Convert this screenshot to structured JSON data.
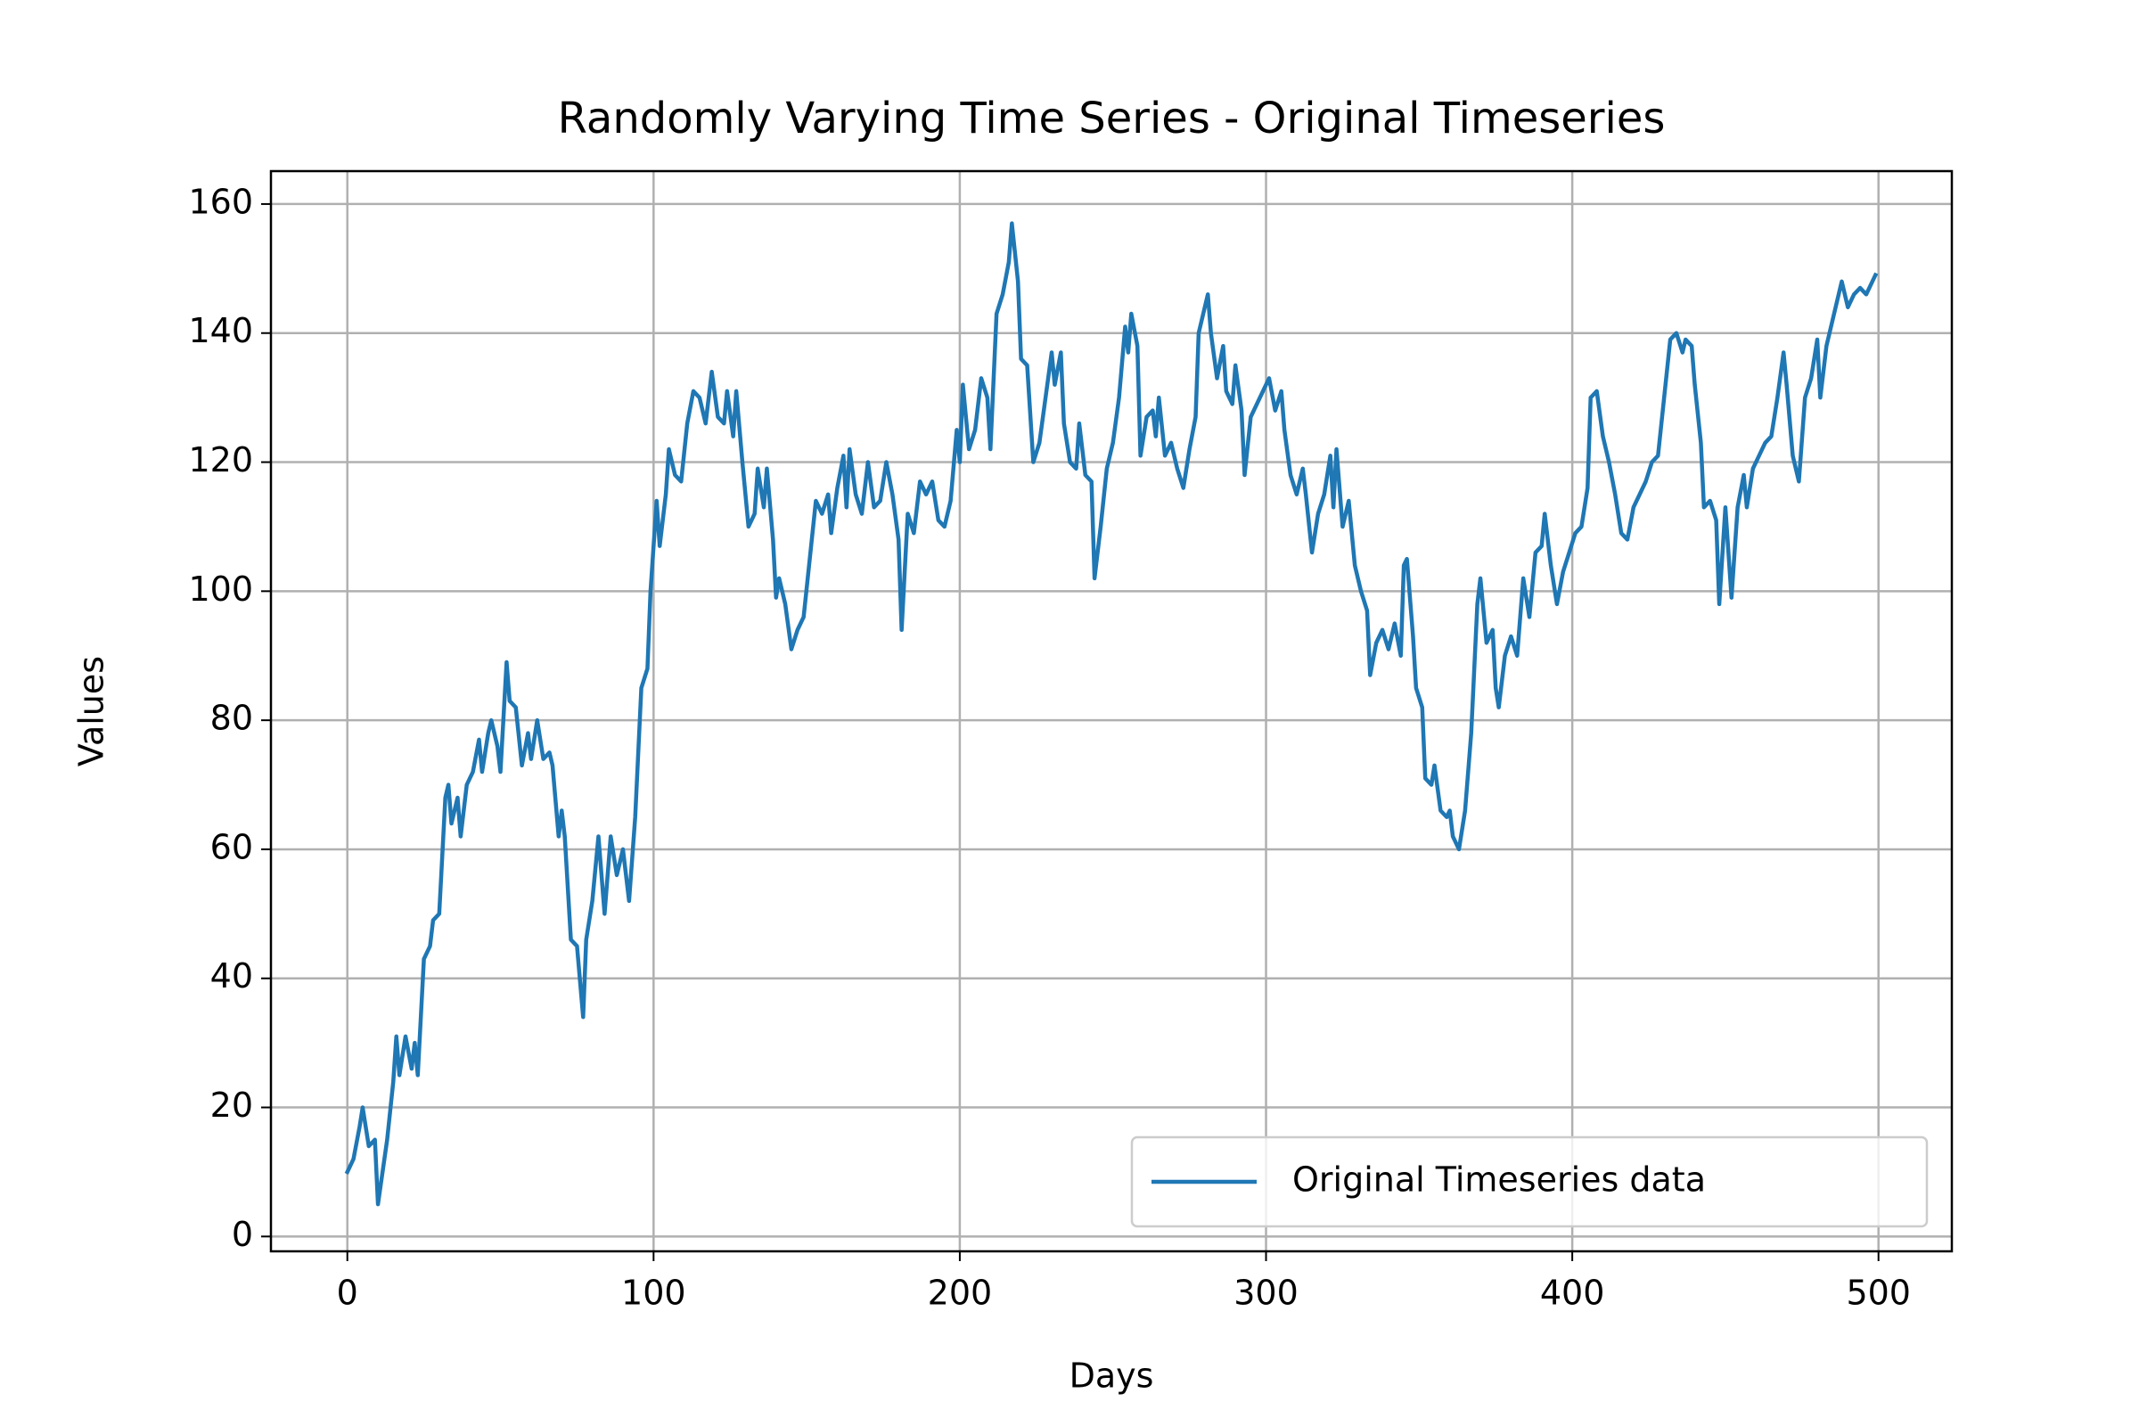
{
  "chart_data": {
    "type": "line",
    "title": "Randomly Varying Time Series - Original Timeseries",
    "x_label": "Days",
    "y_label": "Values",
    "x": [
      0,
      2,
      4,
      5,
      7,
      9,
      10,
      13,
      15,
      16,
      17,
      19,
      21,
      22,
      23,
      25,
      27,
      28,
      30,
      32,
      33,
      34,
      36,
      37,
      39,
      41,
      43,
      44,
      46,
      47,
      49,
      50,
      52,
      53,
      55,
      57,
      59,
      60,
      62,
      64,
      66,
      67,
      69,
      70,
      71,
      73,
      75,
      77,
      78,
      80,
      82,
      84,
      86,
      88,
      90,
      92,
      94,
      96,
      98,
      99,
      101,
      102,
      104,
      105,
      107,
      109,
      111,
      113,
      115,
      117,
      119,
      121,
      123,
      124,
      126,
      127,
      129,
      131,
      133,
      134,
      136,
      137,
      139,
      140,
      141,
      143,
      145,
      147,
      149,
      151,
      153,
      155,
      157,
      158,
      160,
      162,
      163,
      164,
      166,
      168,
      170,
      172,
      174,
      176,
      178,
      180,
      181,
      183,
      185,
      187,
      189,
      191,
      193,
      195,
      197,
      199,
      200,
      201,
      203,
      205,
      207,
      209,
      210,
      212,
      214,
      216,
      217,
      219,
      220,
      222,
      224,
      226,
      228,
      230,
      231,
      233,
      234,
      236,
      238,
      239,
      241,
      243,
      244,
      246,
      248,
      250,
      252,
      254,
      255,
      256,
      258,
      259,
      261,
      263,
      264,
      265,
      267,
      269,
      271,
      273,
      275,
      277,
      278,
      280,
      281,
      282,
      284,
      286,
      287,
      289,
      290,
      292,
      293,
      295,
      297,
      299,
      301,
      303,
      305,
      306,
      308,
      310,
      312,
      313,
      315,
      317,
      319,
      321,
      322,
      323,
      325,
      327,
      329,
      331,
      333,
      334,
      336,
      338,
      340,
      342,
      344,
      345,
      346,
      348,
      349,
      351,
      352,
      354,
      355,
      357,
      359,
      360,
      361,
      363,
      364,
      365,
      367,
      369,
      370,
      372,
      374,
      375,
      376,
      378,
      380,
      382,
      384,
      386,
      388,
      390,
      391,
      393,
      395,
      397,
      399,
      401,
      403,
      405,
      406,
      408,
      410,
      412,
      414,
      416,
      418,
      420,
      422,
      424,
      426,
      428,
      430,
      432,
      434,
      436,
      437,
      439,
      440,
      442,
      443,
      445,
      447,
      448,
      450,
      452,
      454,
      456,
      457,
      459,
      461,
      463,
      465,
      467,
      469,
      470,
      472,
      474,
      476,
      478,
      480,
      481,
      483,
      485,
      487,
      488,
      490,
      492,
      494,
      496,
      499
    ],
    "series": [
      {
        "name": "Original Timeseries data",
        "color": "#1f77b4",
        "values": [
          10,
          12,
          17,
          20,
          14,
          15,
          5,
          15,
          24,
          31,
          25,
          31,
          26,
          30,
          25,
          43,
          45,
          49,
          50,
          68,
          70,
          64,
          68,
          62,
          70,
          72,
          77,
          72,
          78,
          80,
          76,
          72,
          89,
          83,
          82,
          73,
          78,
          74,
          80,
          74,
          75,
          73,
          62,
          66,
          62,
          46,
          45,
          34,
          46,
          52,
          62,
          50,
          62,
          56,
          60,
          52,
          65,
          85,
          88,
          100,
          114,
          107,
          115,
          122,
          118,
          117,
          126,
          131,
          130,
          126,
          134,
          127,
          126,
          131,
          124,
          131,
          120,
          110,
          112,
          119,
          113,
          119,
          108,
          99,
          102,
          98,
          91,
          94,
          96,
          105,
          114,
          112,
          115,
          109,
          116,
          121,
          113,
          122,
          115,
          112,
          120,
          113,
          114,
          120,
          115,
          108,
          94,
          112,
          109,
          117,
          115,
          117,
          111,
          110,
          114,
          125,
          120,
          132,
          122,
          125,
          133,
          130,
          122,
          143,
          146,
          151,
          157,
          148,
          136,
          135,
          120,
          123,
          130,
          137,
          132,
          137,
          126,
          120,
          119,
          126,
          118,
          117,
          102,
          110,
          119,
          123,
          130,
          141,
          137,
          143,
          138,
          121,
          127,
          128,
          124,
          130,
          121,
          123,
          119,
          116,
          122,
          127,
          140,
          144,
          146,
          140,
          133,
          138,
          131,
          129,
          135,
          128,
          118,
          127,
          129,
          131,
          133,
          128,
          131,
          125,
          118,
          115,
          119,
          115,
          106,
          112,
          115,
          121,
          113,
          122,
          110,
          114,
          104,
          100,
          97,
          87,
          92,
          94,
          91,
          95,
          90,
          104,
          105,
          93,
          85,
          82,
          71,
          70,
          73,
          66,
          65,
          66,
          62,
          60,
          63,
          66,
          78,
          98,
          102,
          92,
          94,
          85,
          82,
          90,
          93,
          90,
          102,
          96,
          106,
          107,
          112,
          104,
          98,
          103,
          106,
          109,
          110,
          116,
          130,
          131,
          124,
          120,
          115,
          109,
          108,
          113,
          115,
          117,
          120,
          121,
          130,
          139,
          140,
          137,
          139,
          138,
          132,
          123,
          113,
          114,
          111,
          98,
          113,
          99,
          113,
          118,
          113,
          119,
          121,
          123,
          124,
          130,
          137,
          132,
          121,
          117,
          130,
          133,
          139,
          130,
          138,
          142,
          146,
          148,
          144,
          146,
          147,
          146,
          149
        ]
      }
    ],
    "xlim": [
      -24.95,
      523.95
    ],
    "ylim": [
      -2.3,
      165.1
    ],
    "xticks": [
      0,
      100,
      200,
      300,
      400,
      500
    ],
    "yticks": [
      0,
      20,
      40,
      60,
      80,
      100,
      120,
      140,
      160
    ],
    "grid": true,
    "legend": "lower right"
  }
}
